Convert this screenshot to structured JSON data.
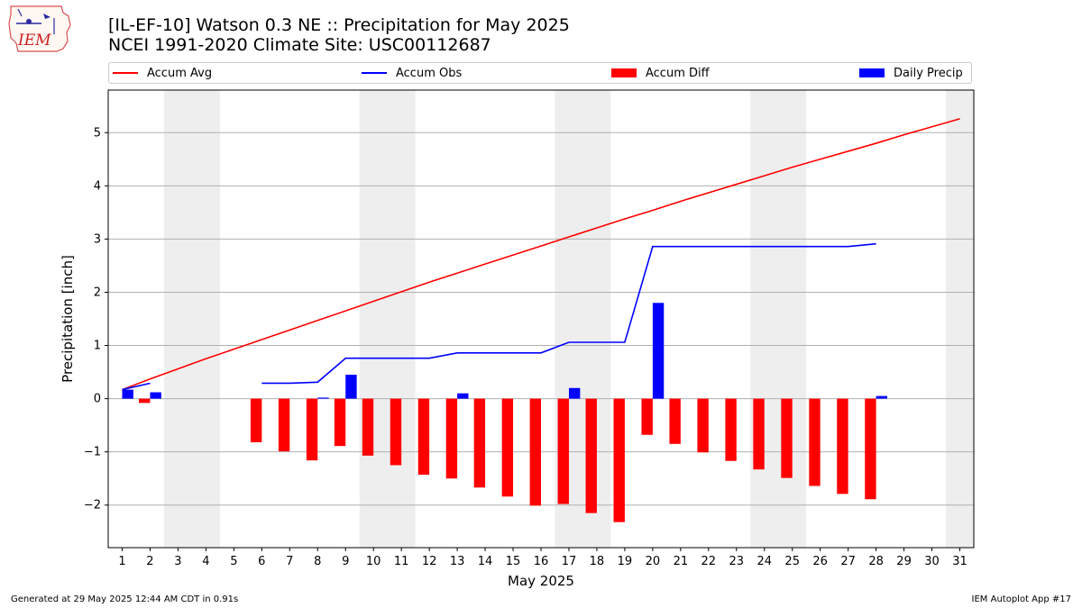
{
  "header": {
    "title_line1": "[IL-EF-10] Watson 0.3 NE :: Precipitation for May 2025",
    "title_line2": "NCEI 1991-2020 Climate Site: USC00112687",
    "logo_text": "IEM"
  },
  "legend": {
    "items": [
      {
        "label": "Accum Avg",
        "kind": "line",
        "color": "#ff0000"
      },
      {
        "label": "Accum Obs",
        "kind": "line",
        "color": "#0000ff"
      },
      {
        "label": "Accum Diff",
        "kind": "patch",
        "color": "#ff0000"
      },
      {
        "label": "Daily Precip",
        "kind": "patch",
        "color": "#0000ff"
      }
    ]
  },
  "footer": {
    "left": "Generated at 29 May 2025 12:44 AM CDT in 0.91s",
    "right": "IEM Autoplot App #17"
  },
  "chart_data": {
    "type": "bar",
    "xlabel": "May 2025",
    "ylabel": "Precipitation [inch]",
    "xlim": [
      0.5,
      31.5
    ],
    "ylim": [
      -2.8,
      5.8
    ],
    "x": [
      1,
      2,
      3,
      4,
      5,
      6,
      7,
      8,
      9,
      10,
      11,
      12,
      13,
      14,
      15,
      16,
      17,
      18,
      19,
      20,
      21,
      22,
      23,
      24,
      25,
      26,
      27,
      28,
      29,
      30,
      31
    ],
    "xticks": [
      1,
      2,
      3,
      4,
      5,
      6,
      7,
      8,
      9,
      10,
      11,
      12,
      13,
      14,
      15,
      16,
      17,
      18,
      19,
      20,
      21,
      22,
      23,
      24,
      25,
      26,
      27,
      28,
      29,
      30,
      31
    ],
    "yticks": [
      -2,
      -1,
      0,
      1,
      2,
      3,
      4,
      5
    ],
    "grid": "horizontal",
    "legend_position": "top",
    "weekend_shading_days": [
      [
        3,
        4
      ],
      [
        10,
        11
      ],
      [
        17,
        18
      ],
      [
        24,
        25
      ],
      [
        31,
        31
      ]
    ],
    "shading_color": "#eeeeee",
    "series": [
      {
        "name": "Accum Avg",
        "type": "line",
        "color": "#ff0000",
        "values": [
          0.17,
          0.37,
          0.56,
          0.75,
          0.93,
          1.11,
          1.29,
          1.47,
          1.65,
          1.83,
          2.01,
          2.19,
          2.36,
          2.53,
          2.7,
          2.87,
          3.04,
          3.21,
          3.38,
          3.54,
          3.71,
          3.87,
          4.03,
          4.19,
          4.35,
          4.5,
          4.65,
          4.8,
          4.96,
          5.11,
          5.26
        ]
      },
      {
        "name": "Accum Obs",
        "type": "line",
        "color": "#0000ff",
        "values": [
          0.17,
          0.29,
          null,
          null,
          null,
          0.29,
          0.29,
          0.31,
          0.76,
          0.76,
          0.76,
          0.76,
          0.86,
          0.86,
          0.86,
          0.86,
          1.06,
          1.06,
          1.06,
          2.86,
          2.86,
          2.86,
          2.86,
          2.86,
          2.86,
          2.86,
          2.86,
          2.91,
          null,
          null,
          null
        ]
      },
      {
        "name": "Accum Diff",
        "type": "bar",
        "color": "#ff0000",
        "values": [
          0.0,
          -0.08,
          null,
          null,
          null,
          -0.82,
          -0.99,
          -1.16,
          -0.89,
          -1.07,
          -1.25,
          -1.43,
          -1.5,
          -1.67,
          -1.84,
          -2.01,
          -1.98,
          -2.15,
          -2.32,
          -0.68,
          -0.85,
          -1.01,
          -1.17,
          -1.33,
          -1.49,
          -1.64,
          -1.79,
          -1.89,
          null,
          null,
          null
        ]
      },
      {
        "name": "Daily Precip",
        "type": "bar",
        "color": "#0000ff",
        "values": [
          0.17,
          0.12,
          null,
          null,
          null,
          0.0,
          0.0,
          0.02,
          0.45,
          0.0,
          0.0,
          0.0,
          0.1,
          0.0,
          0.0,
          0.0,
          0.2,
          0.0,
          0.0,
          1.8,
          0.0,
          0.0,
          0.0,
          0.0,
          0.0,
          0.0,
          0.0,
          0.05,
          null,
          null,
          null
        ]
      }
    ]
  }
}
